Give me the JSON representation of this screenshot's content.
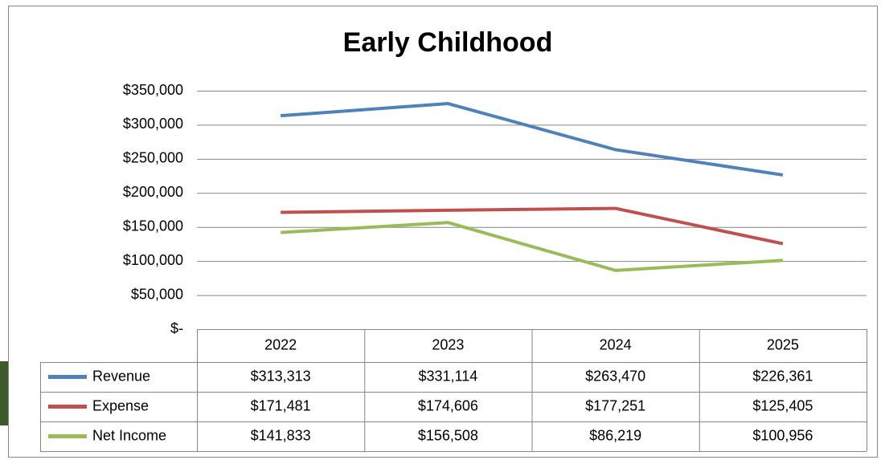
{
  "chart_data": {
    "type": "line",
    "title": "Early Childhood",
    "categories": [
      "2022",
      "2023",
      "2024",
      "2025"
    ],
    "series": [
      {
        "name": "Revenue",
        "color": "#4f81bd",
        "values": [
          313313,
          331114,
          263470,
          226361
        ],
        "value_labels": [
          "$313,313",
          "$331,114",
          "$263,470",
          "$226,361"
        ]
      },
      {
        "name": "Expense",
        "color": "#c0504d",
        "values": [
          171481,
          174606,
          177251,
          125405
        ],
        "value_labels": [
          "$171,481",
          "$174,606",
          "$177,251",
          "$125,405"
        ]
      },
      {
        "name": "Net Income",
        "color": "#9bbb59",
        "values": [
          141833,
          156508,
          86219,
          100956
        ],
        "value_labels": [
          "$141,833",
          "$156,508",
          "$86,219",
          "$100,956"
        ]
      }
    ],
    "ylim": [
      0,
      350000
    ],
    "yticks": [
      {
        "value": 0,
        "label": "$-"
      },
      {
        "value": 50000,
        "label": "$50,000"
      },
      {
        "value": 100000,
        "label": "$100,000"
      },
      {
        "value": 150000,
        "label": "$150,000"
      },
      {
        "value": 200000,
        "label": "$200,000"
      },
      {
        "value": 250000,
        "label": "$250,000"
      },
      {
        "value": 300000,
        "label": "$300,000"
      },
      {
        "value": 350000,
        "label": "$350,000"
      }
    ],
    "grid": true
  }
}
